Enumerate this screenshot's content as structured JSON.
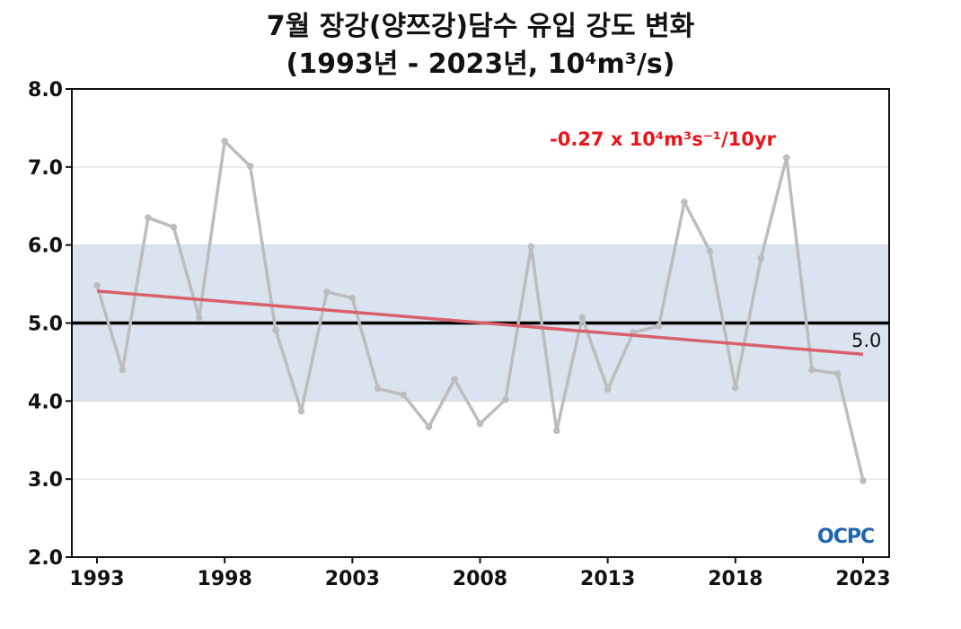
{
  "chart_data": {
    "type": "line",
    "title": "7월 장강(양쯔강)담수 유입 강도 변화",
    "subtitle": "(1993년 - 2023년, 10⁴m³/s)",
    "x": [
      1993,
      1994,
      1995,
      1996,
      1997,
      1998,
      1999,
      2000,
      2001,
      2002,
      2003,
      2004,
      2005,
      2006,
      2007,
      2008,
      2009,
      2010,
      2011,
      2012,
      2013,
      2014,
      2015,
      2016,
      2017,
      2018,
      2019,
      2020,
      2021,
      2022,
      2023
    ],
    "series": [
      {
        "values": [
          5.48,
          4.4,
          6.35,
          6.23,
          5.07,
          7.33,
          7.01,
          4.91,
          3.87,
          5.4,
          5.32,
          4.16,
          4.08,
          3.67,
          4.28,
          3.71,
          4.02,
          5.98,
          3.62,
          5.07,
          4.15,
          4.88,
          4.96,
          6.55,
          5.92,
          4.17,
          5.83,
          7.12,
          4.4,
          4.35,
          2.98
        ],
        "color": "#bdbdbd"
      }
    ],
    "trend": {
      "start": 5.41,
      "end": 4.6,
      "label": "-0.27 x 10⁴m³s⁻¹/10yr",
      "color": "#d9606b"
    },
    "reference": {
      "value": 5.0,
      "label": "5.0",
      "color": "#000000"
    },
    "band": {
      "from": 4.0,
      "to": 6.0,
      "color": "#d9e4f0"
    },
    "xticks": [
      1993,
      1998,
      2003,
      2008,
      2013,
      2018,
      2023
    ],
    "yticks": [
      "2.0",
      "3.0",
      "4.0",
      "5.0",
      "6.0",
      "7.0",
      "8.0"
    ],
    "ylim": [
      2.0,
      8.0
    ],
    "xlim": [
      1993,
      2023
    ],
    "grid": true,
    "logo": "OCPC"
  }
}
